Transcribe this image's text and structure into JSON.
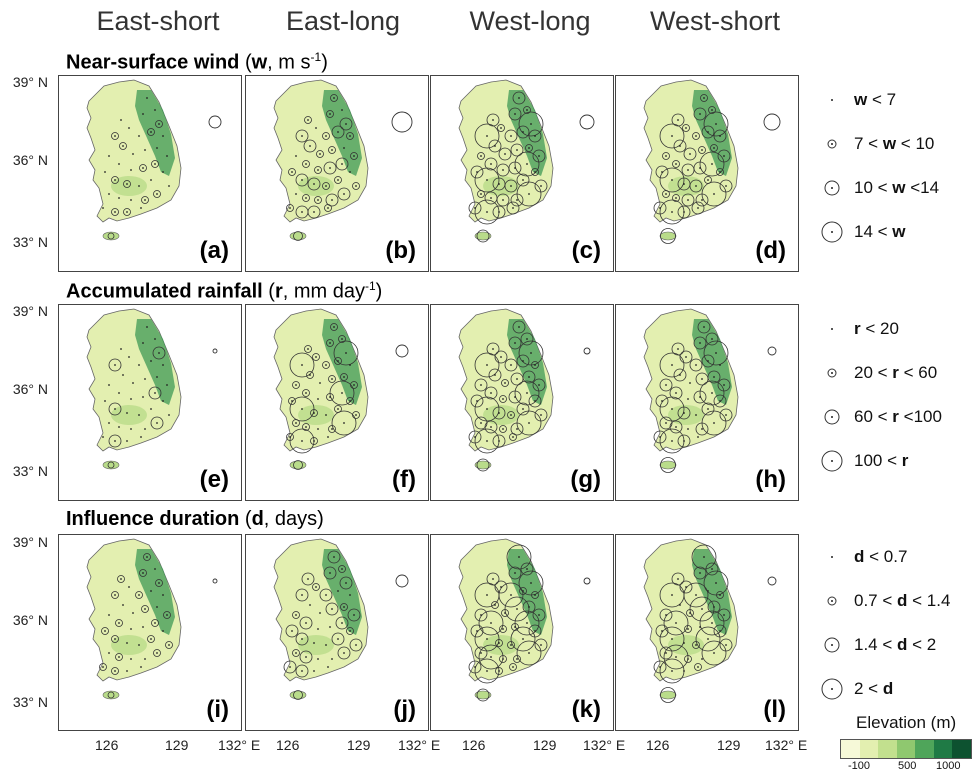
{
  "columns": [
    "East-short",
    "East-long",
    "West-long",
    "West-short"
  ],
  "rows": [
    {
      "title_bold": "Near-surface wind",
      "var": "w",
      "units_pre": ", m s",
      "units_sup": "-1",
      "units_post": ")",
      "panels": [
        "(a)",
        "(b)",
        "(c)",
        "(d)"
      ],
      "legend": [
        {
          "pre": "",
          "var": "w",
          "post": " < 7"
        },
        {
          "pre": "7 < ",
          "var": "w",
          "post": " < 10"
        },
        {
          "pre": "10 < ",
          "var": "w",
          "post": " <14"
        },
        {
          "pre": "14 < ",
          "var": "w",
          "post": ""
        }
      ]
    },
    {
      "title_bold": "Accumulated rainfall",
      "var": "r",
      "units_pre": ", mm day",
      "units_sup": "-1",
      "units_post": ")",
      "panels": [
        "(e)",
        "(f)",
        "(g)",
        "(h)"
      ],
      "legend": [
        {
          "pre": "",
          "var": "r",
          "post": " < 20"
        },
        {
          "pre": "20 < ",
          "var": "r",
          "post": " < 60"
        },
        {
          "pre": "60 < ",
          "var": "r",
          "post": " <100"
        },
        {
          "pre": "100 < ",
          "var": "r",
          "post": ""
        }
      ]
    },
    {
      "title_bold": "Influence duration",
      "var": "d",
      "units_pre": ", days",
      "units_sup": "",
      "units_post": ")",
      "panels": [
        "(i)",
        "(j)",
        "(k)",
        "(l)"
      ],
      "legend": [
        {
          "pre": "",
          "var": "d",
          "post": " < 0.7"
        },
        {
          "pre": "0.7 < ",
          "var": "d",
          "post": " < 1.4"
        },
        {
          "pre": "1.4 < ",
          "var": "d",
          "post": " < 2"
        },
        {
          "pre": "2 < ",
          "var": "d",
          "post": ""
        }
      ]
    }
  ],
  "lat_ticks": [
    "39° N",
    "36° N",
    "33° N"
  ],
  "lon_ticks": [
    "126",
    "129",
    "132° E"
  ],
  "elevation": {
    "title": "Elevation (m)",
    "ticks": [
      "-100",
      "500",
      "1000"
    ],
    "colors": [
      "#f6f9d8",
      "#e3efb0",
      "#c2e08e",
      "#8fc86f",
      "#4fa55a",
      "#1f7a45",
      "#0d5230"
    ]
  },
  "colors": {
    "land_light": "#e3efb0",
    "land_mid": "#b9dc8a",
    "land_dark": "#3f9a55"
  }
}
